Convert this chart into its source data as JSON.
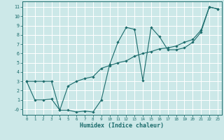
{
  "title": "",
  "xlabel": "Humidex (Indice chaleur)",
  "ylabel": "",
  "bg_color": "#cce8e8",
  "line_color": "#1a6b6b",
  "grid_color": "#ffffff",
  "x_ticks": [
    0,
    1,
    2,
    3,
    4,
    5,
    6,
    7,
    8,
    9,
    10,
    11,
    12,
    13,
    14,
    15,
    16,
    17,
    18,
    19,
    20,
    21,
    22,
    23
  ],
  "y_ticks": [
    0,
    1,
    2,
    3,
    4,
    5,
    6,
    7,
    8,
    9,
    10,
    11
  ],
  "y_tick_labels": [
    "-0",
    "1",
    "2",
    "3",
    "4",
    "5",
    "6",
    "7",
    "8",
    "9",
    "10",
    "11"
  ],
  "ylim": [
    -0.6,
    11.6
  ],
  "xlim": [
    -0.5,
    23.5
  ],
  "series1_x": [
    0,
    1,
    2,
    3,
    4,
    5,
    6,
    7,
    8,
    9,
    10,
    11,
    12,
    13,
    14,
    15,
    16,
    17,
    18,
    19,
    20,
    21,
    22,
    23
  ],
  "series1_y": [
    3.0,
    3.0,
    3.0,
    3.0,
    -0.1,
    -0.1,
    -0.3,
    -0.2,
    -0.3,
    1.0,
    4.8,
    7.2,
    8.8,
    8.6,
    3.1,
    8.8,
    7.8,
    6.4,
    6.4,
    6.6,
    7.2,
    8.3,
    11.0,
    10.8
  ],
  "series2_x": [
    0,
    1,
    2,
    3,
    4,
    5,
    6,
    7,
    8,
    9,
    10,
    11,
    12,
    13,
    14,
    15,
    16,
    17,
    18,
    19,
    20,
    21,
    22,
    23
  ],
  "series2_y": [
    3.0,
    1.0,
    1.0,
    1.1,
    -0.1,
    2.5,
    3.0,
    3.3,
    3.5,
    4.4,
    4.7,
    5.0,
    5.2,
    5.7,
    6.0,
    6.2,
    6.5,
    6.6,
    6.8,
    7.2,
    7.5,
    8.5,
    11.0,
    10.8
  ]
}
